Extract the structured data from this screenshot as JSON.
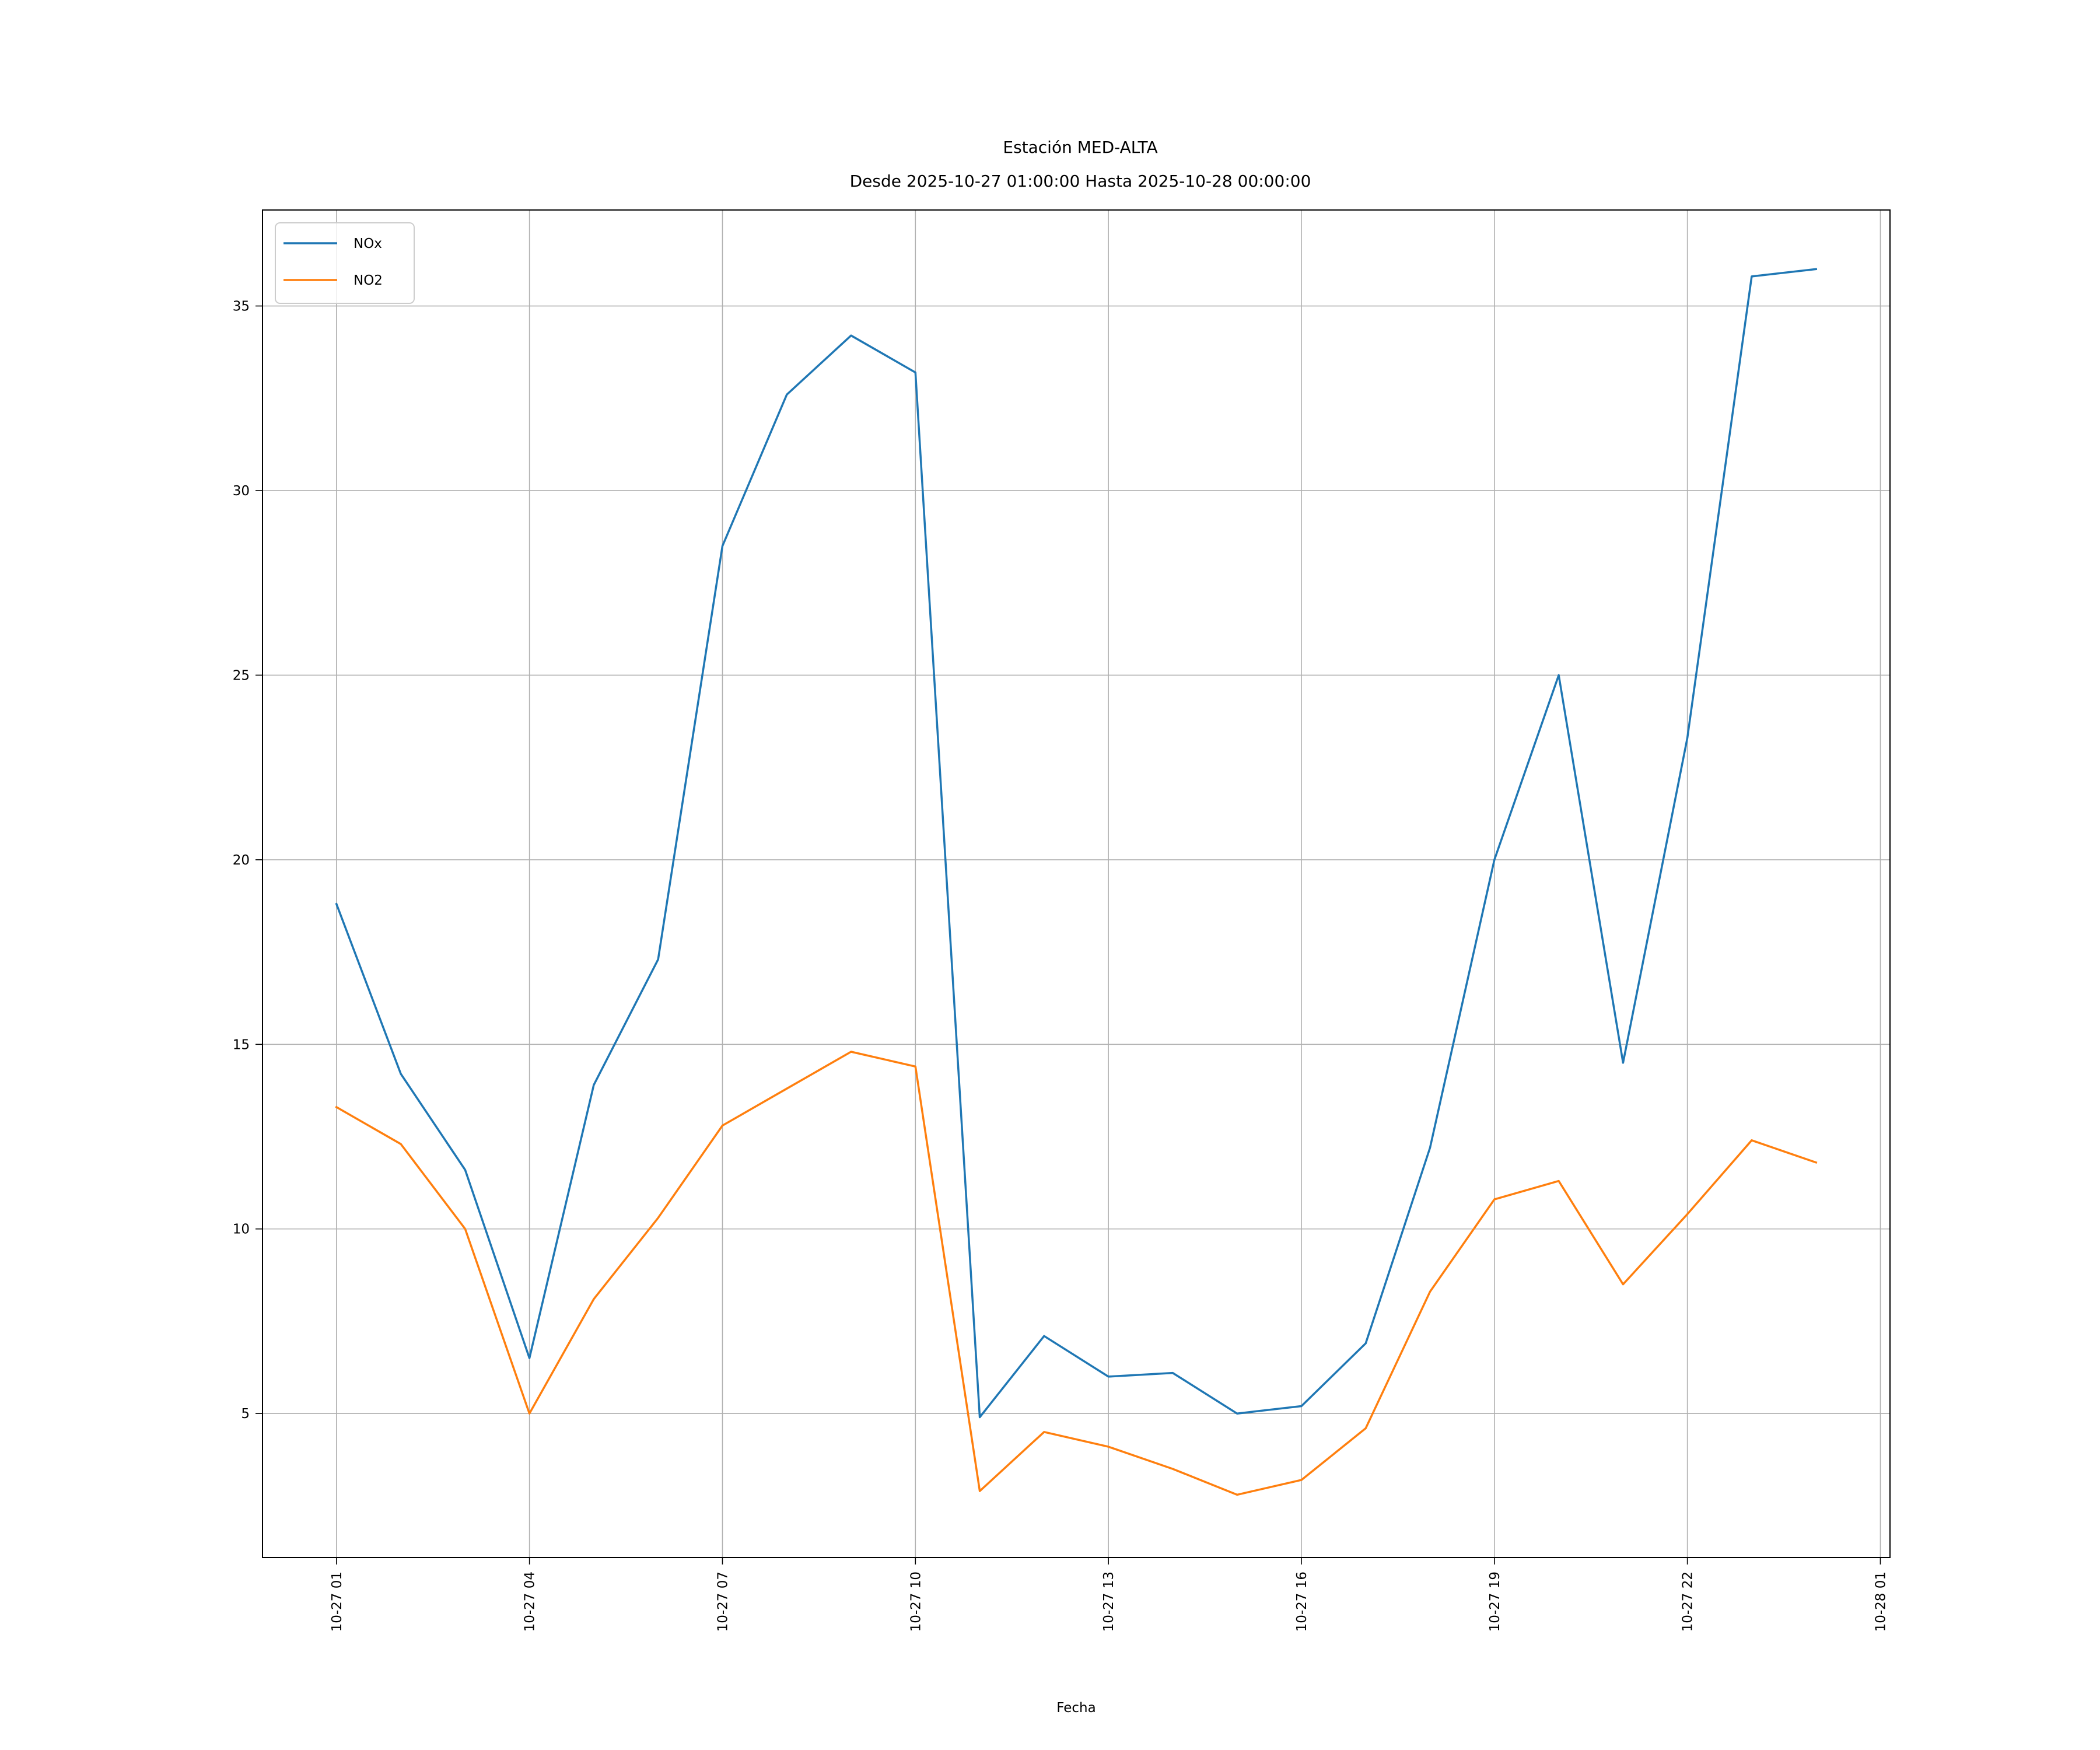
{
  "chart_data": {
    "type": "line",
    "title": "Estación MED-ALTA",
    "subtitle": "Desde 2025-10-27 01:00:00 Hasta 2025-10-28 00:00:00",
    "xlabel": "Fecha",
    "ylabel": "",
    "x_axis": {
      "type": "datetime",
      "range": [
        "2025-10-26 23:51:00",
        "2025-10-28 01:09:00"
      ],
      "ticks": [
        {
          "value": "2025-10-27 01:00",
          "label": "10-27 01"
        },
        {
          "value": "2025-10-27 04:00",
          "label": "10-27 04"
        },
        {
          "value": "2025-10-27 07:00",
          "label": "10-27 07"
        },
        {
          "value": "2025-10-27 10:00",
          "label": "10-27 10"
        },
        {
          "value": "2025-10-27 13:00",
          "label": "10-27 13"
        },
        {
          "value": "2025-10-27 16:00",
          "label": "10-27 16"
        },
        {
          "value": "2025-10-27 19:00",
          "label": "10-27 19"
        },
        {
          "value": "2025-10-27 22:00",
          "label": "10-27 22"
        },
        {
          "value": "2025-10-28 01:00",
          "label": "10-28 01"
        }
      ]
    },
    "y_axis": {
      "range": [
        1.1,
        37.6
      ],
      "ticks": [
        {
          "value": 5,
          "label": "5"
        },
        {
          "value": 10,
          "label": "10"
        },
        {
          "value": 15,
          "label": "15"
        },
        {
          "value": 20,
          "label": "20"
        },
        {
          "value": 25,
          "label": "25"
        },
        {
          "value": 30,
          "label": "30"
        },
        {
          "value": 35,
          "label": "35"
        }
      ]
    },
    "grid": true,
    "legend": "top-left",
    "x": [
      "2025-10-27 01:00",
      "2025-10-27 02:00",
      "2025-10-27 03:00",
      "2025-10-27 04:00",
      "2025-10-27 05:00",
      "2025-10-27 06:00",
      "2025-10-27 07:00",
      "2025-10-27 08:00",
      "2025-10-27 09:00",
      "2025-10-27 10:00",
      "2025-10-27 11:00",
      "2025-10-27 12:00",
      "2025-10-27 13:00",
      "2025-10-27 14:00",
      "2025-10-27 15:00",
      "2025-10-27 16:00",
      "2025-10-27 17:00",
      "2025-10-27 18:00",
      "2025-10-27 19:00",
      "2025-10-27 20:00",
      "2025-10-27 21:00",
      "2025-10-27 22:00",
      "2025-10-27 23:00",
      "2025-10-28 00:00"
    ],
    "series": [
      {
        "name": "NOx",
        "color": "#1f77b4",
        "values": [
          18.8,
          14.2,
          11.6,
          6.5,
          13.9,
          17.3,
          28.5,
          32.6,
          34.2,
          33.2,
          4.9,
          7.1,
          6.0,
          6.1,
          5.0,
          5.2,
          6.9,
          12.2,
          20.0,
          25.0,
          14.5,
          23.3,
          35.8,
          36.0
        ]
      },
      {
        "name": "NO2",
        "color": "#ff7f0e",
        "values": [
          13.3,
          12.3,
          10.0,
          5.0,
          8.1,
          10.3,
          12.8,
          13.8,
          14.8,
          14.4,
          2.9,
          4.5,
          4.1,
          3.5,
          2.8,
          3.2,
          4.6,
          8.3,
          10.8,
          11.3,
          8.5,
          10.4,
          12.4,
          11.8
        ]
      }
    ]
  }
}
